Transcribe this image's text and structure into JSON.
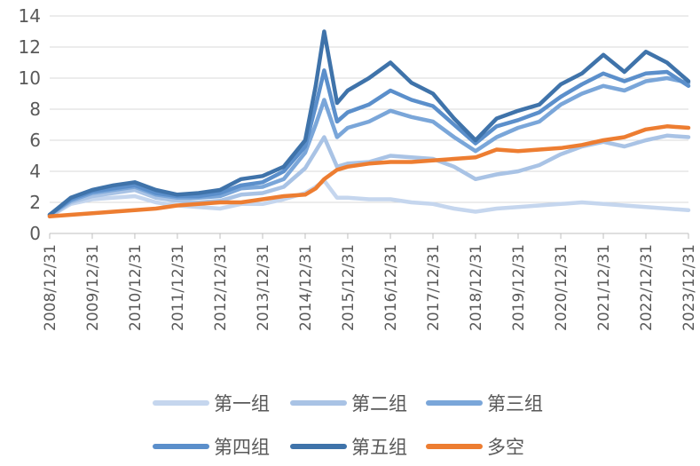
{
  "chart_data": {
    "type": "line",
    "title": "",
    "xlabel": "",
    "ylabel": "",
    "ylim": [
      0,
      14
    ],
    "yticks": [
      "0",
      "2",
      "4",
      "6",
      "8",
      "10",
      "12",
      "14"
    ],
    "xlim": [
      "2008-12-31",
      "2023-12-31"
    ],
    "xticks": [
      "2008/12/31",
      "2009/12/31",
      "2010/12/31",
      "2011/12/31",
      "2012/12/31",
      "2013/12/31",
      "2014/12/31",
      "2015/12/31",
      "2016/12/31",
      "2017/12/31",
      "2018/12/31",
      "2019/12/31",
      "2020/12/31",
      "2021/12/31",
      "2022/12/31",
      "2023/12/31"
    ],
    "grid": "horizontal",
    "legend_position": "bottom",
    "x": [
      "2008-12-31",
      "2009-06-30",
      "2009-12-31",
      "2010-06-30",
      "2010-12-31",
      "2011-06-30",
      "2011-12-31",
      "2012-06-30",
      "2012-12-31",
      "2013-06-30",
      "2013-12-31",
      "2014-06-30",
      "2014-12-31",
      "2015-03-31",
      "2015-06-12",
      "2015-09-30",
      "2015-12-31",
      "2016-06-30",
      "2016-12-31",
      "2017-06-30",
      "2017-12-31",
      "2018-06-30",
      "2018-12-31",
      "2019-06-30",
      "2019-12-31",
      "2020-06-30",
      "2020-12-31",
      "2021-06-30",
      "2021-12-31",
      "2022-06-30",
      "2022-12-31",
      "2023-06-30",
      "2023-12-31"
    ],
    "series": [
      {
        "name": "第一组",
        "color": "#c5d6ee",
        "values": [
          1.1,
          1.9,
          2.2,
          2.3,
          2.4,
          2.0,
          1.8,
          1.7,
          1.6,
          1.9,
          1.9,
          2.2,
          2.6,
          3.0,
          3.4,
          2.3,
          2.3,
          2.2,
          2.2,
          2.0,
          1.9,
          1.6,
          1.4,
          1.6,
          1.7,
          1.8,
          1.9,
          2.0,
          1.9,
          1.8,
          1.7,
          1.6,
          1.5
        ]
      },
      {
        "name": "第二组",
        "color": "#a9c3e5",
        "values": [
          1.1,
          2.0,
          2.4,
          2.6,
          2.8,
          2.3,
          2.1,
          2.0,
          2.1,
          2.5,
          2.6,
          3.0,
          4.2,
          5.3,
          6.2,
          4.3,
          4.5,
          4.6,
          5.0,
          4.9,
          4.8,
          4.3,
          3.5,
          3.8,
          4.0,
          4.4,
          5.1,
          5.6,
          5.9,
          5.6,
          6.0,
          6.3,
          6.2
        ]
      },
      {
        "name": "第三组",
        "color": "#7aa6d9",
        "values": [
          1.2,
          2.1,
          2.6,
          2.8,
          3.0,
          2.5,
          2.3,
          2.3,
          2.4,
          2.9,
          3.0,
          3.5,
          5.2,
          7.0,
          8.6,
          6.2,
          6.8,
          7.2,
          7.9,
          7.5,
          7.2,
          6.2,
          5.3,
          6.2,
          6.8,
          7.2,
          8.3,
          9.0,
          9.5,
          9.2,
          9.8,
          10.0,
          9.7
        ]
      },
      {
        "name": "第四组",
        "color": "#5b8fcb",
        "values": [
          1.2,
          2.2,
          2.7,
          2.9,
          3.1,
          2.6,
          2.4,
          2.4,
          2.6,
          3.1,
          3.3,
          4.0,
          5.6,
          8.2,
          10.5,
          7.2,
          7.8,
          8.3,
          9.2,
          8.6,
          8.2,
          7.0,
          5.8,
          6.9,
          7.3,
          7.8,
          8.8,
          9.6,
          10.3,
          9.8,
          10.3,
          10.4,
          9.5
        ]
      },
      {
        "name": "第五组",
        "color": "#3f73aa",
        "values": [
          1.2,
          2.3,
          2.8,
          3.1,
          3.3,
          2.8,
          2.5,
          2.6,
          2.8,
          3.5,
          3.7,
          4.3,
          6.0,
          9.5,
          13.0,
          8.4,
          9.2,
          10.0,
          11.0,
          9.7,
          9.0,
          7.4,
          6.0,
          7.4,
          7.9,
          8.3,
          9.6,
          10.3,
          11.5,
          10.4,
          11.7,
          11.0,
          9.8
        ]
      },
      {
        "name": "多空",
        "color": "#ed7d31",
        "values": [
          1.1,
          1.2,
          1.3,
          1.4,
          1.5,
          1.6,
          1.8,
          1.9,
          2.0,
          2.0,
          2.2,
          2.4,
          2.5,
          2.9,
          3.5,
          4.1,
          4.3,
          4.5,
          4.6,
          4.6,
          4.7,
          4.8,
          4.9,
          5.4,
          5.3,
          5.4,
          5.5,
          5.7,
          6.0,
          6.2,
          6.7,
          6.9,
          6.8
        ]
      }
    ]
  }
}
